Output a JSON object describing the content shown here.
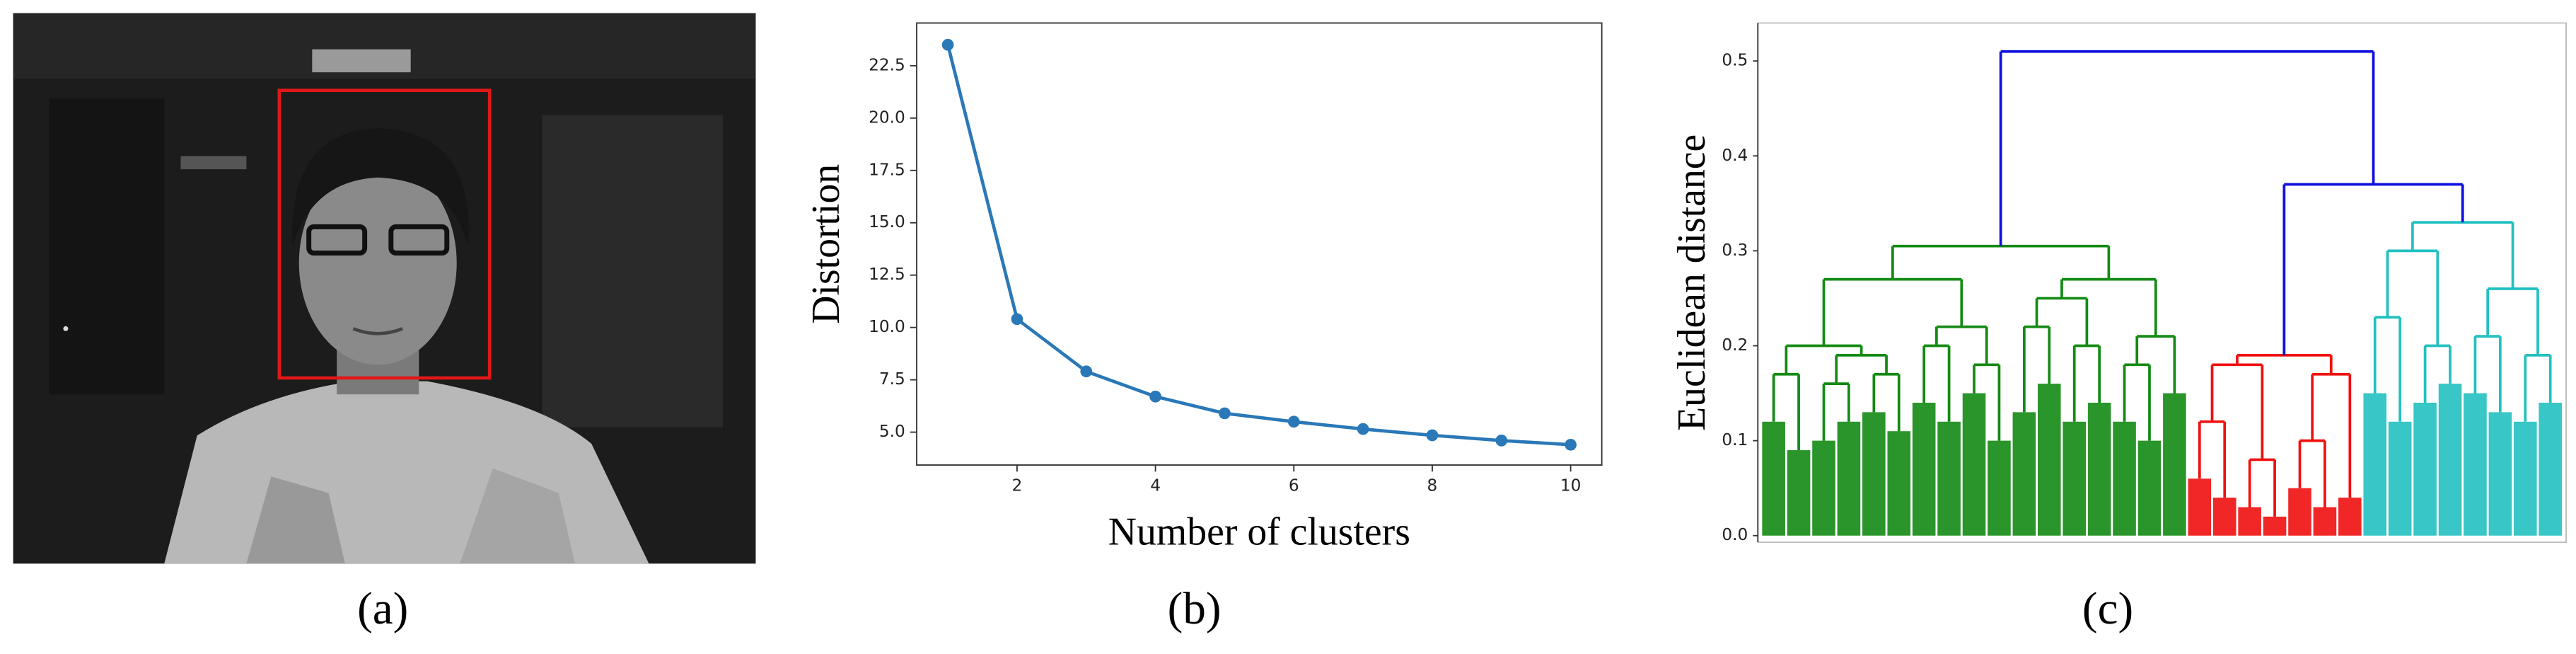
{
  "panel_labels": [
    "(a)",
    "(b)",
    "(c)"
  ],
  "chart_data": [
    {
      "type": "line",
      "xlabel": "Number of clusters",
      "ylabel": "Distortion",
      "x": [
        1,
        2,
        3,
        4,
        5,
        6,
        7,
        8,
        9,
        10
      ],
      "values": [
        23.5,
        10.4,
        7.9,
        6.7,
        5.9,
        5.5,
        5.15,
        4.85,
        4.6,
        4.4
      ],
      "color": "#2a78b8",
      "xlim": [
        0.55,
        10.45
      ],
      "ylim": [
        3.43,
        24.54
      ],
      "xticks": [
        2,
        4,
        6,
        8,
        10
      ],
      "yticks": [
        {
          "value": 5,
          "label": "5.0"
        },
        7.5,
        {
          "value": 10,
          "label": "10.0"
        },
        12.5,
        {
          "value": 15,
          "label": "15.0"
        },
        17.5,
        {
          "value": 20,
          "label": "20.0"
        },
        22.5
      ]
    },
    {
      "type": "dendrogram",
      "ylabel": "Euclidean distance",
      "ylim": [
        -0.007,
        0.54
      ],
      "yticks": [
        {
          "value": 0,
          "label": "0.0"
        },
        0.1,
        0.2,
        0.3,
        0.4,
        0.5
      ],
      "tree": {
        "height": 0.51,
        "color": "#1010e0",
        "children": [
          {
            "height": 0.305,
            "color": "#138a13",
            "children": [
              {
                "height": 0.27,
                "children": [
                  {
                    "height": 0.2,
                    "children": [
                      {
                        "height": 0.17,
                        "children": [
                          0.12,
                          0.09
                        ]
                      },
                      {
                        "height": 0.19,
                        "children": [
                          {
                            "height": 0.16,
                            "children": [
                              0.1,
                              0.12
                            ]
                          },
                          {
                            "height": 0.17,
                            "children": [
                              0.13,
                              0.11
                            ]
                          }
                        ]
                      }
                    ]
                  },
                  {
                    "height": 0.22,
                    "children": [
                      {
                        "height": 0.2,
                        "children": [
                          0.14,
                          0.12
                        ]
                      },
                      {
                        "height": 0.18,
                        "children": [
                          0.15,
                          0.1
                        ]
                      }
                    ]
                  }
                ]
              },
              {
                "height": 0.27,
                "children": [
                  {
                    "height": 0.25,
                    "children": [
                      {
                        "height": 0.22,
                        "children": [
                          0.13,
                          0.16
                        ]
                      },
                      {
                        "height": 0.2,
                        "children": [
                          0.12,
                          0.14
                        ]
                      }
                    ]
                  },
                  {
                    "height": 0.21,
                    "children": [
                      {
                        "height": 0.18,
                        "children": [
                          0.12,
                          0.1
                        ]
                      },
                      0.15
                    ]
                  }
                ]
              }
            ]
          },
          {
            "height": 0.37,
            "children": [
              {
                "height": 0.19,
                "color": "#f01010",
                "children": [
                  {
                    "height": 0.18,
                    "children": [
                      {
                        "height": 0.12,
                        "children": [
                          0.06,
                          0.04
                        ]
                      },
                      {
                        "height": 0.08,
                        "children": [
                          0.03,
                          0.02
                        ]
                      }
                    ]
                  },
                  {
                    "height": 0.17,
                    "children": [
                      {
                        "height": 0.1,
                        "children": [
                          0.05,
                          0.03
                        ]
                      },
                      0.04
                    ]
                  }
                ]
              },
              {
                "height": 0.33,
                "color": "#22c0c0",
                "children": [
                  {
                    "height": 0.3,
                    "children": [
                      {
                        "height": 0.23,
                        "children": [
                          0.15,
                          0.12
                        ]
                      },
                      {
                        "height": 0.2,
                        "children": [
                          0.14,
                          0.16
                        ]
                      }
                    ]
                  },
                  {
                    "height": 0.26,
                    "children": [
                      {
                        "height": 0.21,
                        "children": [
                          0.15,
                          0.13
                        ]
                      },
                      {
                        "height": 0.19,
                        "children": [
                          0.12,
                          0.14
                        ]
                      }
                    ]
                  }
                ]
              }
            ]
          }
        ]
      }
    }
  ]
}
